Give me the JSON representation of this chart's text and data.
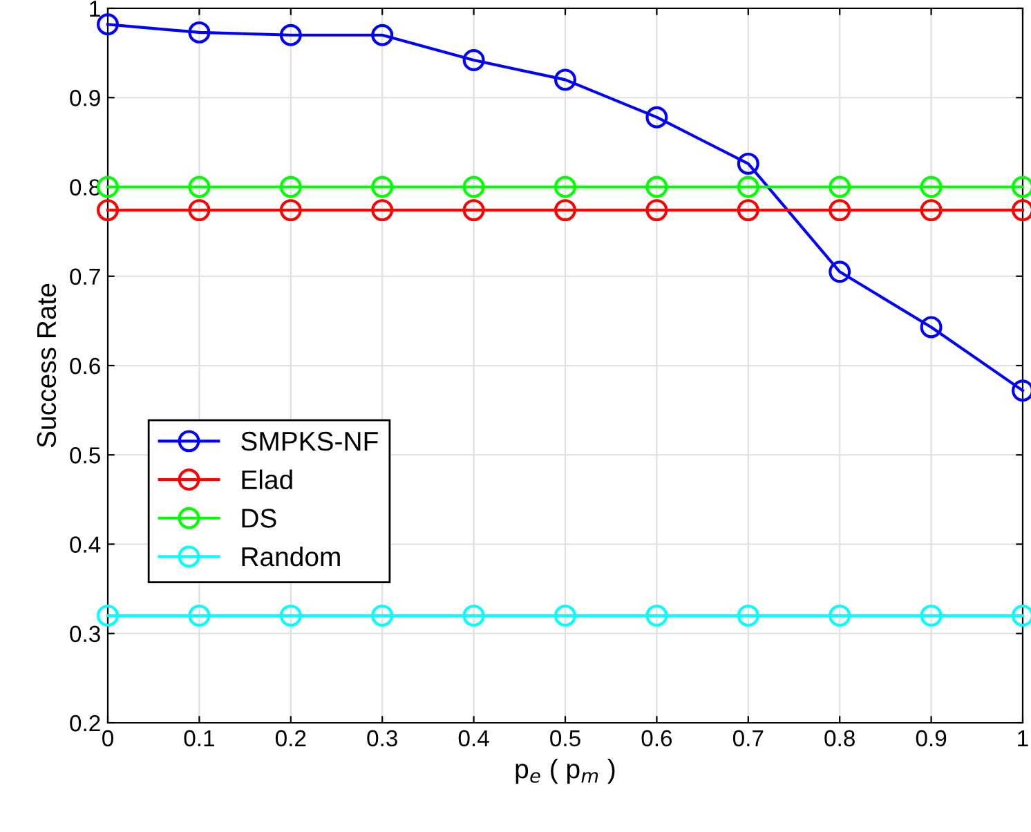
{
  "chart_data": {
    "type": "line",
    "xlabel": "p$_{e}$ ( p$_{m}$ )",
    "ylabel": "Success Rate",
    "x": [
      0,
      0.1,
      0.2,
      0.3,
      0.4,
      0.5,
      0.6,
      0.7,
      0.8,
      0.9,
      1
    ],
    "series": [
      {
        "name": "SMPKS-NF",
        "color": "#0000ff",
        "values": [
          0.982,
          0.973,
          0.97,
          0.97,
          0.942,
          0.92,
          0.878,
          0.826,
          0.705,
          0.643,
          0.572
        ]
      },
      {
        "name": "Elad",
        "color": "#ff0000",
        "values": [
          0.774,
          0.774,
          0.774,
          0.774,
          0.774,
          0.774,
          0.774,
          0.774,
          0.774,
          0.774,
          0.774
        ]
      },
      {
        "name": "DS",
        "color": "#00ff00",
        "values": [
          0.8,
          0.8,
          0.8,
          0.8,
          0.8,
          0.8,
          0.8,
          0.8,
          0.8,
          0.8,
          0.8
        ]
      },
      {
        "name": "Random",
        "color": "#00ffff",
        "values": [
          0.32,
          0.32,
          0.32,
          0.32,
          0.32,
          0.32,
          0.32,
          0.32,
          0.32,
          0.32,
          0.32
        ]
      }
    ],
    "xlim": [
      0,
      1
    ],
    "xticks": [
      0,
      0.1,
      0.2,
      0.3,
      0.4,
      0.5,
      0.6,
      0.7,
      0.8,
      0.9,
      1
    ],
    "ylim": [
      0.2,
      1
    ],
    "yticks": [
      0.2,
      0.3,
      0.4,
      0.5,
      0.6,
      0.7,
      0.8,
      0.9,
      1
    ],
    "grid": true,
    "legend": "left",
    "marker": "circle",
    "line_style": "solid"
  }
}
